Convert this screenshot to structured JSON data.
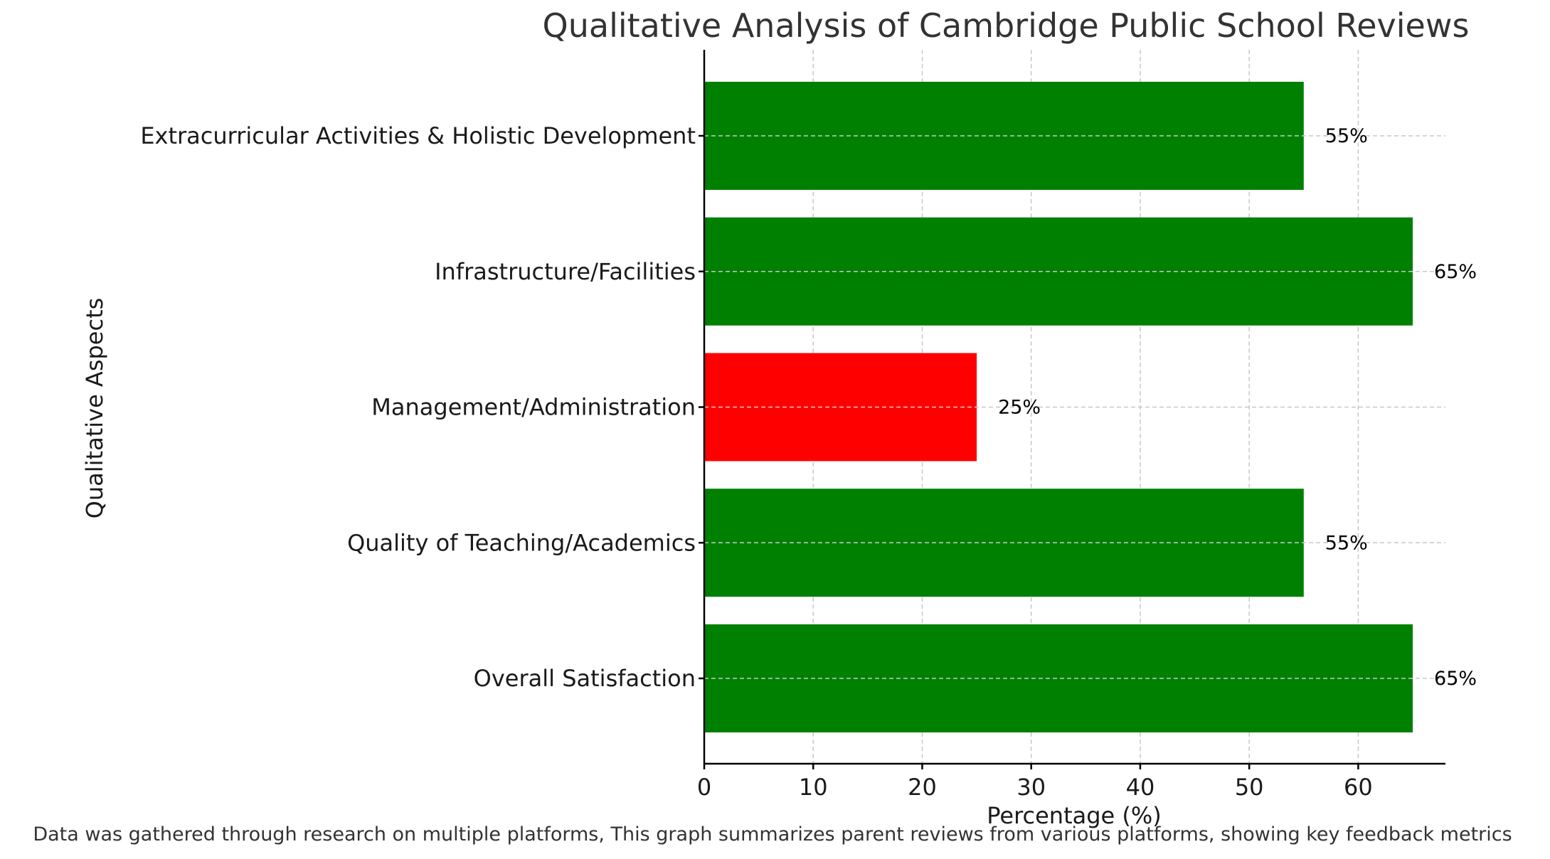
{
  "chart_data": {
    "type": "bar",
    "orientation": "horizontal",
    "title": "Qualitative Analysis of Cambridge Public School Reviews",
    "xlabel": "Percentage (%)",
    "ylabel": "Qualitative Aspects",
    "xlim": [
      0,
      68
    ],
    "xticks": [
      0,
      10,
      20,
      30,
      40,
      50,
      60
    ],
    "grid": true,
    "categories": [
      "Overall Satisfaction",
      "Quality of Teaching/Academics",
      "Management/Administration",
      "Infrastructure/Facilities",
      "Extracurricular Activities & Holistic Development"
    ],
    "values": [
      65,
      55,
      25,
      65,
      55
    ],
    "value_labels": [
      "65%",
      "55%",
      "25%",
      "65%",
      "55%"
    ],
    "colors": [
      "#008000",
      "#008000",
      "#ff0000",
      "#008000",
      "#008000"
    ],
    "footnote": "Data was gathered through research on multiple platforms, This graph summarizes parent reviews from various platforms, showing key feedback metrics"
  }
}
